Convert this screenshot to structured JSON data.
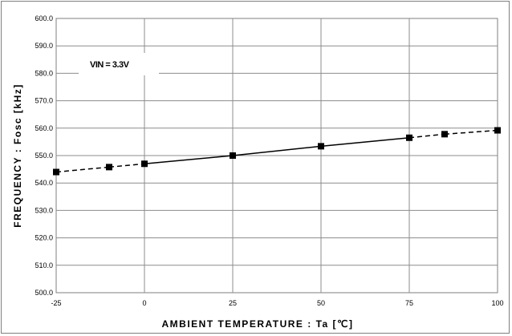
{
  "chart_data": {
    "type": "line",
    "xlabel": "AMBIENT TEMPERATURE : Ta [℃]",
    "ylabel": "FREQUENCY : Fosc [kHz]",
    "annotation": "VIN = 3.3V",
    "xlim": [
      -25,
      100
    ],
    "ylim": [
      500,
      600
    ],
    "x_ticks": [
      "-25",
      "0",
      "25",
      "50",
      "75",
      "100"
    ],
    "y_ticks": [
      "500.0",
      "510.0",
      "520.0",
      "530.0",
      "540.0",
      "550.0",
      "560.0",
      "570.0",
      "580.0",
      "590.0",
      "600.0"
    ],
    "grid": true,
    "series": [
      {
        "x": [
          -25,
          -10,
          0,
          25,
          50,
          75,
          85,
          100
        ],
        "y": [
          544.0,
          545.8,
          547.0,
          550.0,
          553.4,
          556.5,
          557.8,
          559.2
        ],
        "marker": "square",
        "color": "#000000"
      }
    ]
  }
}
